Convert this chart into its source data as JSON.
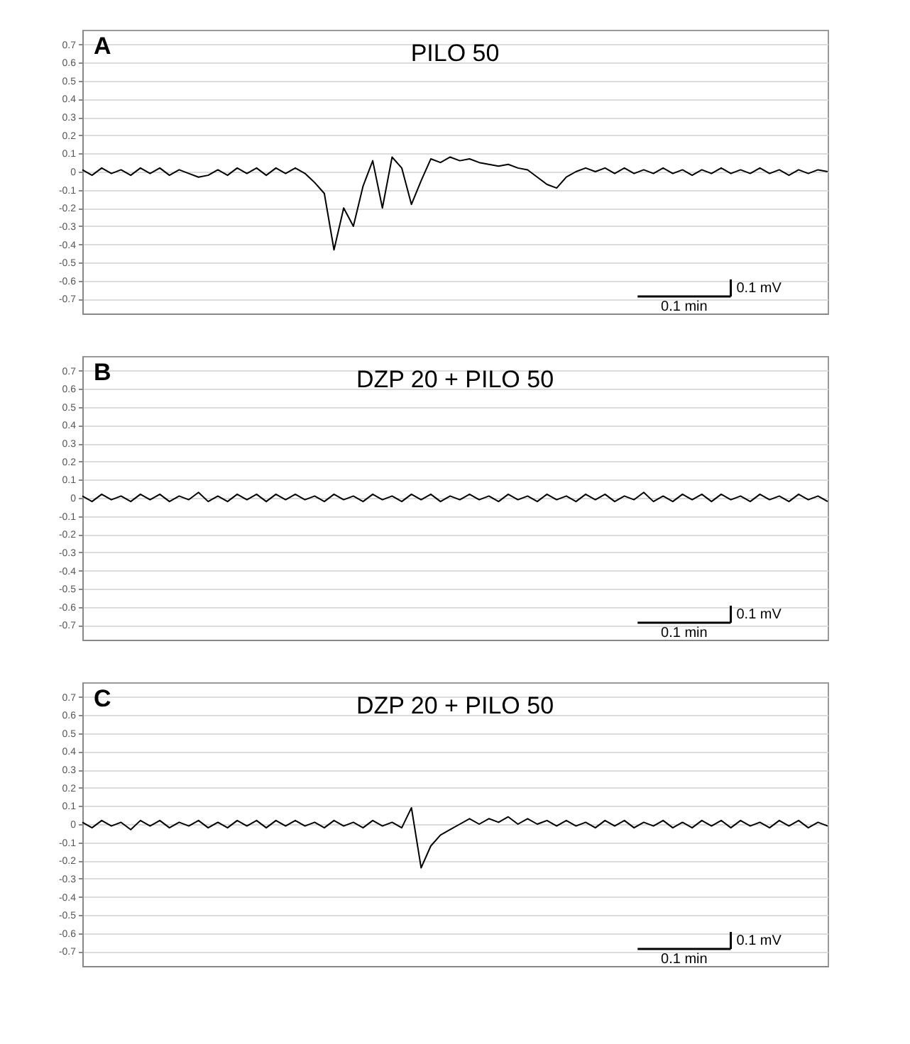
{
  "chart_data": [
    {
      "type": "line",
      "title": "PILO 50",
      "annotations": [
        "A",
        "0.1 mV",
        "0.1 min"
      ],
      "categories": [
        null,
        null,
        null,
        null,
        null,
        null,
        null,
        null,
        null,
        null,
        null,
        null,
        null,
        null,
        null,
        null,
        null,
        null,
        null,
        null,
        null,
        null,
        null,
        null,
        null,
        null,
        null,
        null,
        null,
        null,
        null,
        null,
        null,
        null,
        null,
        null,
        null,
        null,
        null,
        null,
        null,
        null,
        null,
        null,
        null,
        null,
        null,
        null,
        null,
        null,
        null,
        null,
        null,
        null,
        null,
        null,
        null,
        null,
        null,
        null,
        null,
        null,
        null,
        null,
        null,
        null,
        null,
        null,
        null,
        null,
        null,
        null,
        null,
        null,
        null,
        null,
        null,
        null
      ],
      "series": [
        {
          "color": "#000000",
          "values": [
            0.01,
            -0.02,
            0.02,
            -0.01,
            0.01,
            -0.02,
            0.02,
            -0.01,
            0.02,
            -0.02,
            0.01,
            -0.01,
            -0.03,
            -0.02,
            0.01,
            -0.02,
            0.02,
            -0.01,
            0.02,
            -0.02,
            0.02,
            -0.01,
            0.02,
            -0.01,
            -0.06,
            -0.12,
            -0.43,
            -0.2,
            -0.3,
            -0.08,
            0.06,
            -0.2,
            0.08,
            0.02,
            -0.18,
            -0.05,
            0.07,
            0.05,
            0.08,
            0.06,
            0.07,
            0.05,
            0.04,
            0.03,
            0.04,
            0.02,
            0.01,
            -0.03,
            -0.07,
            -0.09,
            -0.03,
            0.0,
            0.02,
            0.0,
            0.02,
            -0.01,
            0.02,
            -0.01,
            0.01,
            -0.01,
            0.02,
            -0.01,
            0.01,
            -0.02,
            0.01,
            -0.01,
            0.02,
            -0.01,
            0.01,
            -0.01,
            0.02,
            -0.01,
            0.01,
            -0.02,
            0.01,
            -0.01,
            0.01,
            0.0
          ]
        }
      ],
      "ylim": [
        -0.78,
        0.78
      ],
      "yticks": [
        -0.7,
        -0.6,
        -0.5,
        -0.4,
        -0.3,
        -0.2,
        -0.1,
        0,
        0.1,
        0.2,
        0.3,
        0.4,
        0.5,
        0.6,
        0.7
      ],
      "grid": "y",
      "tick_labels": "y",
      "line_style": "solid"
    },
    {
      "type": "line",
      "title": "DZP 20 + PILO 50",
      "annotations": [
        "B",
        "0.1 mV",
        "0.1 min"
      ],
      "categories": [
        null,
        null,
        null,
        null,
        null,
        null,
        null,
        null,
        null,
        null,
        null,
        null,
        null,
        null,
        null,
        null,
        null,
        null,
        null,
        null,
        null,
        null,
        null,
        null,
        null,
        null,
        null,
        null,
        null,
        null,
        null,
        null,
        null,
        null,
        null,
        null,
        null,
        null,
        null,
        null,
        null,
        null,
        null,
        null,
        null,
        null,
        null,
        null,
        null,
        null,
        null,
        null,
        null,
        null,
        null,
        null,
        null,
        null,
        null,
        null,
        null,
        null,
        null,
        null,
        null,
        null,
        null,
        null,
        null,
        null,
        null,
        null,
        null,
        null,
        null,
        null,
        null,
        null
      ],
      "series": [
        {
          "color": "#000000",
          "values": [
            0.01,
            -0.02,
            0.02,
            -0.01,
            0.01,
            -0.02,
            0.02,
            -0.01,
            0.02,
            -0.02,
            0.01,
            -0.01,
            0.03,
            -0.02,
            0.01,
            -0.02,
            0.02,
            -0.01,
            0.02,
            -0.02,
            0.02,
            -0.01,
            0.02,
            -0.01,
            0.01,
            -0.02,
            0.02,
            -0.01,
            0.01,
            -0.02,
            0.02,
            -0.01,
            0.01,
            -0.02,
            0.02,
            -0.01,
            0.02,
            -0.02,
            0.01,
            -0.01,
            0.02,
            -0.01,
            0.01,
            -0.02,
            0.02,
            -0.01,
            0.01,
            -0.02,
            0.02,
            -0.01,
            0.01,
            -0.02,
            0.02,
            -0.01,
            0.02,
            -0.02,
            0.01,
            -0.01,
            0.03,
            -0.02,
            0.01,
            -0.02,
            0.02,
            -0.01,
            0.02,
            -0.02,
            0.02,
            -0.01,
            0.01,
            -0.02,
            0.02,
            -0.01,
            0.01,
            -0.02,
            0.02,
            -0.01,
            0.01,
            -0.02
          ]
        }
      ],
      "ylim": [
        -0.78,
        0.78
      ],
      "yticks": [
        -0.7,
        -0.6,
        -0.5,
        -0.4,
        -0.3,
        -0.2,
        -0.1,
        0,
        0.1,
        0.2,
        0.3,
        0.4,
        0.5,
        0.6,
        0.7
      ],
      "grid": "y",
      "tick_labels": "y",
      "line_style": "solid"
    },
    {
      "type": "line",
      "title": "DZP 20 + PILO 50",
      "annotations": [
        "C",
        "0.1 mV",
        "0.1 min"
      ],
      "categories": [
        null,
        null,
        null,
        null,
        null,
        null,
        null,
        null,
        null,
        null,
        null,
        null,
        null,
        null,
        null,
        null,
        null,
        null,
        null,
        null,
        null,
        null,
        null,
        null,
        null,
        null,
        null,
        null,
        null,
        null,
        null,
        null,
        null,
        null,
        null,
        null,
        null,
        null,
        null,
        null,
        null,
        null,
        null,
        null,
        null,
        null,
        null,
        null,
        null,
        null,
        null,
        null,
        null,
        null,
        null,
        null,
        null,
        null,
        null,
        null,
        null,
        null,
        null,
        null,
        null,
        null,
        null,
        null,
        null,
        null,
        null,
        null,
        null,
        null,
        null,
        null,
        null,
        null
      ],
      "series": [
        {
          "color": "#000000",
          "values": [
            0.01,
            -0.02,
            0.02,
            -0.01,
            0.01,
            -0.03,
            0.02,
            -0.01,
            0.02,
            -0.02,
            0.01,
            -0.01,
            0.02,
            -0.02,
            0.01,
            -0.02,
            0.02,
            -0.01,
            0.02,
            -0.02,
            0.02,
            -0.01,
            0.02,
            -0.01,
            0.01,
            -0.02,
            0.02,
            -0.01,
            0.01,
            -0.02,
            0.02,
            -0.01,
            0.01,
            -0.02,
            0.09,
            -0.24,
            -0.12,
            -0.06,
            -0.03,
            0.0,
            0.03,
            0.0,
            0.03,
            0.01,
            0.04,
            0.0,
            0.03,
            0.0,
            0.02,
            -0.01,
            0.02,
            -0.01,
            0.01,
            -0.02,
            0.02,
            -0.01,
            0.02,
            -0.02,
            0.01,
            -0.01,
            0.02,
            -0.02,
            0.01,
            -0.02,
            0.02,
            -0.01,
            0.02,
            -0.02,
            0.02,
            -0.01,
            0.01,
            -0.02,
            0.02,
            -0.01,
            0.02,
            -0.02,
            0.01,
            -0.01
          ]
        }
      ],
      "ylim": [
        -0.78,
        0.78
      ],
      "yticks": [
        -0.7,
        -0.6,
        -0.5,
        -0.4,
        -0.3,
        -0.2,
        -0.1,
        0,
        0.1,
        0.2,
        0.3,
        0.4,
        0.5,
        0.6,
        0.7
      ],
      "grid": "y",
      "tick_labels": "y",
      "line_style": "solid"
    }
  ]
}
